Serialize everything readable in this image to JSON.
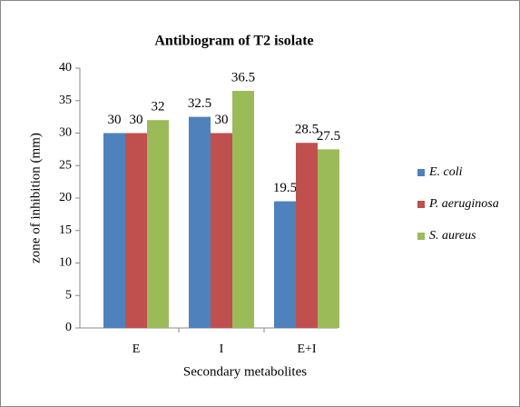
{
  "chart_data": {
    "type": "bar",
    "title": "Antibiogram of T2 isolate",
    "xlabel": "Secondary metabolites",
    "ylabel": "zone of inhibition (mm)",
    "categories": [
      "E",
      "I",
      "E+I"
    ],
    "series": [
      {
        "name": "E. coli",
        "color": "#4f81bd",
        "values": [
          30,
          32.5,
          19.5
        ]
      },
      {
        "name": "P. aeruginosa",
        "color": "#c0504d",
        "values": [
          30,
          30,
          28.5
        ]
      },
      {
        "name": "S. aureus",
        "color": "#9bbb59",
        "values": [
          32,
          36.5,
          27.5
        ]
      }
    ],
    "ylim": [
      0,
      40
    ],
    "yticks": [
      0,
      5,
      10,
      15,
      20,
      25,
      30,
      35,
      40
    ],
    "legend": "right"
  }
}
